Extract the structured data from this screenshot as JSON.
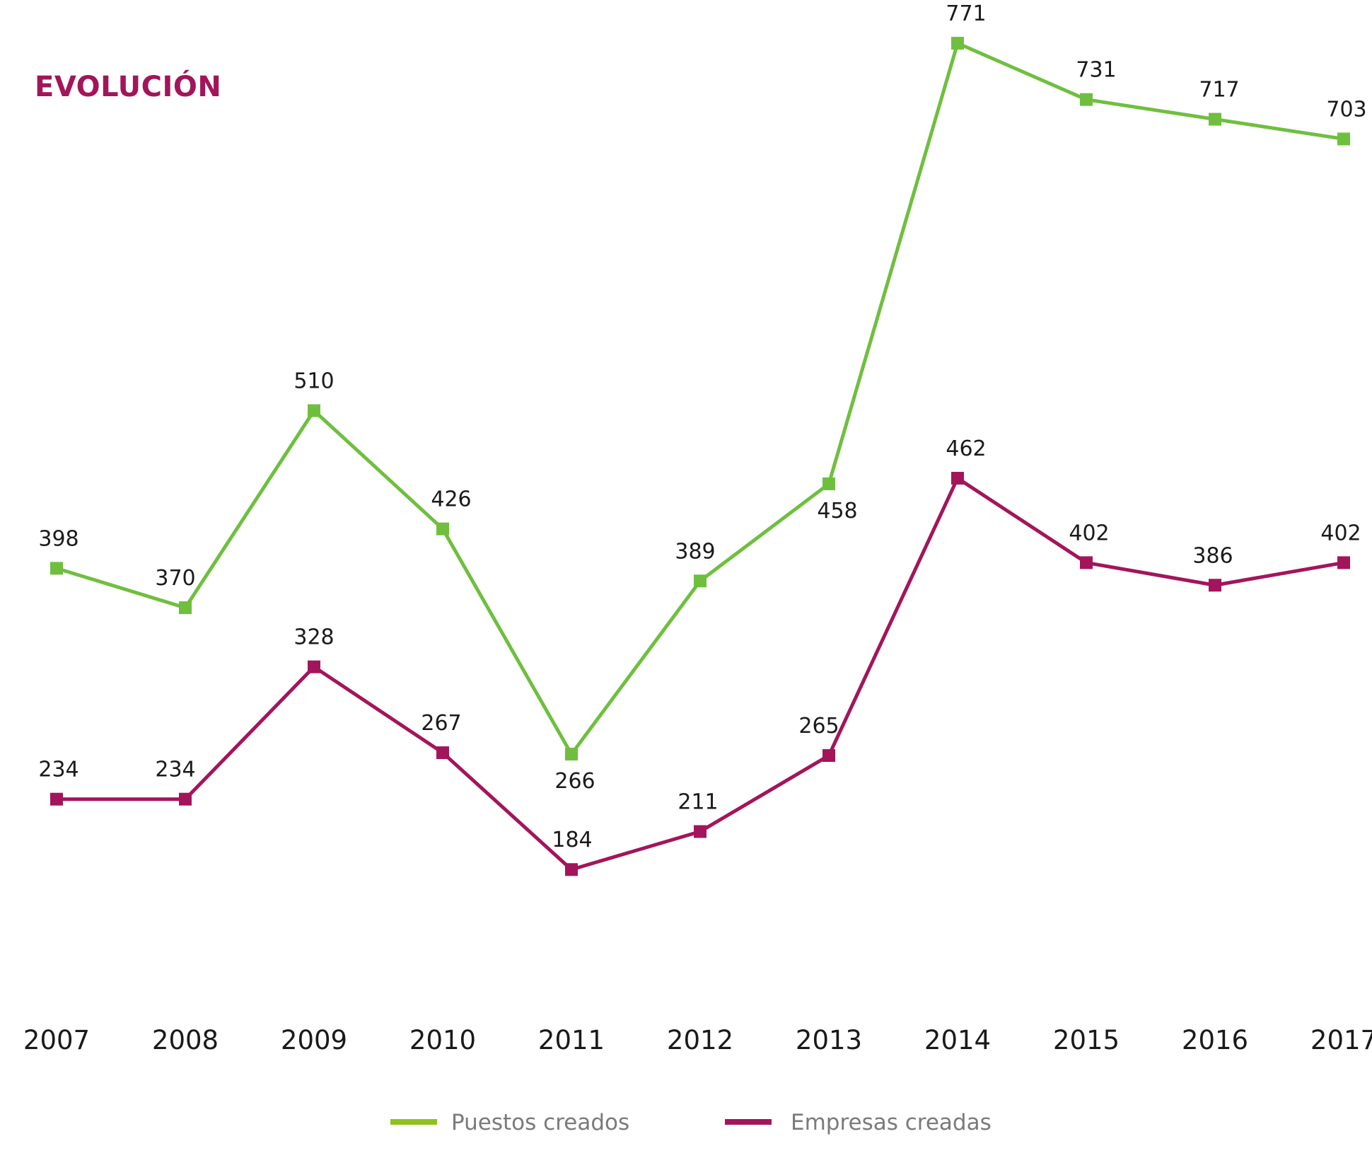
{
  "chart_data": {
    "type": "line",
    "title": "EVOLUCIÓN",
    "x": [
      "2007",
      "2008",
      "2009",
      "2010",
      "2011",
      "2012",
      "2013",
      "2014",
      "2015",
      "2016",
      "2017"
    ],
    "series": [
      {
        "name": "Puestos creados",
        "color": "#6fbf3f",
        "legend_color": "#8cc21e",
        "values": [
          398,
          370,
          510,
          426,
          266,
          389,
          458,
          771,
          731,
          717,
          703
        ]
      },
      {
        "name": "Empresas creadas",
        "color": "#a3155b",
        "legend_color": "#a3155b",
        "values": [
          234,
          234,
          328,
          267,
          184,
          211,
          265,
          462,
          402,
          386,
          402
        ]
      }
    ],
    "grid": false,
    "legend": "bottom-center",
    "title_color": "#a3155b"
  }
}
